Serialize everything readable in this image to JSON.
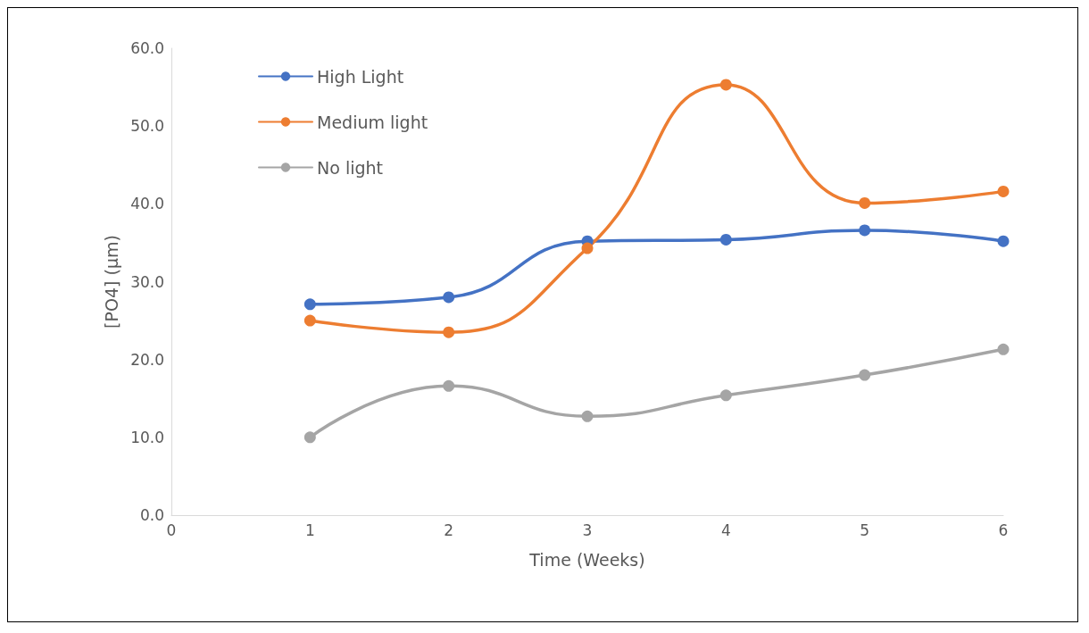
{
  "chart_data": {
    "type": "line",
    "xlabel": "Time (Weeks)",
    "ylabel": "[PO4] (µm)",
    "x": [
      1,
      2,
      3,
      4,
      5,
      6
    ],
    "series": [
      {
        "name": "High Light",
        "color": "#4472c4",
        "values": [
          27.1,
          28.0,
          35.2,
          35.4,
          36.6,
          35.2
        ]
      },
      {
        "name": "Medium light",
        "color": "#ed7d31",
        "values": [
          25.0,
          23.5,
          34.3,
          55.3,
          40.1,
          41.6
        ]
      },
      {
        "name": "No light",
        "color": "#a5a5a5",
        "values": [
          10.0,
          16.6,
          12.7,
          15.4,
          18.0,
          21.3
        ]
      }
    ],
    "xlim": [
      0,
      6
    ],
    "xticks": [
      0,
      1,
      2,
      3,
      4,
      5,
      6
    ],
    "ylim": [
      0,
      60
    ],
    "yticks": [
      {
        "value": 0,
        "label": "0.0"
      },
      {
        "value": 10,
        "label": "10.0"
      },
      {
        "value": 20,
        "label": "20.0"
      },
      {
        "value": 30,
        "label": "30.0"
      },
      {
        "value": 40,
        "label": "40.0"
      },
      {
        "value": 50,
        "label": "50.0"
      },
      {
        "value": 60,
        "label": "60.0"
      }
    ],
    "grid": false,
    "legend": "top left",
    "marker": "circle",
    "line_style": "solid"
  }
}
